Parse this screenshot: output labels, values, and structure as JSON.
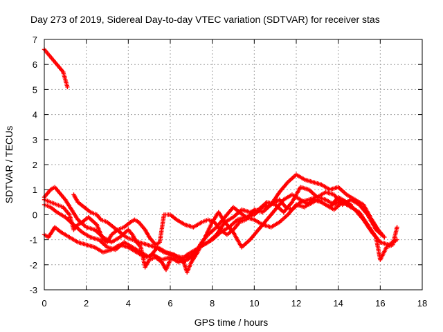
{
  "chart_data": {
    "type": "scatter",
    "title": "Day 273 of 2019, Sidereal Day-to-day VTEC variation (SDTVAR) for receiver stas",
    "xlabel": "GPS time / hours",
    "ylabel": "SDTVAR / TECUs",
    "xlim": [
      0,
      18
    ],
    "ylim": [
      -3,
      7
    ],
    "x_ticks": [
      0,
      2,
      4,
      6,
      8,
      10,
      12,
      14,
      16,
      18
    ],
    "y_ticks": [
      -3,
      -2,
      -1,
      0,
      1,
      2,
      3,
      4,
      5,
      6,
      7
    ],
    "grid": true,
    "marker": "+",
    "color": "#ff0000",
    "series": [
      {
        "name": "track-1",
        "points": [
          [
            0.0,
            6.6
          ],
          [
            0.3,
            6.3
          ],
          [
            0.6,
            6.0
          ],
          [
            0.9,
            5.7
          ],
          [
            1.1,
            5.1
          ]
        ]
      },
      {
        "name": "track-2",
        "points": [
          [
            0.0,
            0.7
          ],
          [
            0.3,
            1.0
          ],
          [
            0.5,
            1.1
          ],
          [
            0.8,
            0.8
          ],
          [
            1.0,
            0.6
          ],
          [
            1.3,
            0.2
          ],
          [
            1.6,
            -0.2
          ],
          [
            2.0,
            -0.5
          ],
          [
            2.4,
            -0.6
          ],
          [
            2.8,
            -0.9
          ],
          [
            3.2,
            -1.1
          ],
          [
            3.6,
            -0.9
          ],
          [
            4.0,
            -0.6
          ],
          [
            4.2,
            -0.8
          ],
          [
            4.4,
            -1.1
          ],
          [
            4.6,
            -1.3
          ],
          [
            4.8,
            -2.1
          ],
          [
            5.0,
            -1.8
          ],
          [
            5.3,
            -1.7
          ],
          [
            5.6,
            -1.9
          ],
          [
            5.8,
            -2.2
          ],
          [
            6.0,
            -1.8
          ],
          [
            6.3,
            -1.7
          ],
          [
            6.6,
            -1.8
          ],
          [
            6.8,
            -2.3
          ],
          [
            7.0,
            -1.9
          ],
          [
            7.3,
            -1.5
          ],
          [
            7.6,
            -1.0
          ],
          [
            8.0,
            -0.3
          ],
          [
            8.3,
            0.1
          ],
          [
            8.6,
            -0.3
          ],
          [
            9.0,
            -0.7
          ],
          [
            9.4,
            -1.3
          ],
          [
            9.8,
            -1.0
          ],
          [
            10.2,
            -0.6
          ],
          [
            10.6,
            -0.2
          ],
          [
            11.0,
            0.2
          ],
          [
            11.4,
            0.6
          ],
          [
            11.8,
            0.8
          ],
          [
            12.2,
            0.6
          ],
          [
            12.6,
            0.4
          ],
          [
            13.0,
            0.6
          ],
          [
            13.4,
            0.4
          ],
          [
            13.8,
            0.2
          ],
          [
            14.2,
            0.5
          ],
          [
            14.6,
            0.3
          ],
          [
            15.0,
            0.1
          ],
          [
            15.4,
            -0.4
          ],
          [
            15.8,
            -0.9
          ],
          [
            16.0,
            -1.8
          ],
          [
            16.3,
            -1.3
          ],
          [
            16.6,
            -1.2
          ],
          [
            16.8,
            -0.5
          ]
        ]
      },
      {
        "name": "track-3",
        "points": [
          [
            0.0,
            0.4
          ],
          [
            0.3,
            0.3
          ],
          [
            0.6,
            0.1
          ],
          [
            1.0,
            -0.1
          ],
          [
            1.4,
            -0.4
          ],
          [
            1.8,
            -0.7
          ],
          [
            2.2,
            -0.9
          ],
          [
            2.6,
            -1.0
          ],
          [
            3.0,
            -1.3
          ],
          [
            3.4,
            -1.4
          ],
          [
            3.8,
            -1.1
          ],
          [
            4.2,
            -1.3
          ],
          [
            4.6,
            -1.5
          ],
          [
            5.0,
            -1.7
          ],
          [
            5.4,
            -1.3
          ],
          [
            5.8,
            -1.5
          ],
          [
            6.2,
            -1.6
          ],
          [
            6.6,
            -1.9
          ],
          [
            7.0,
            -1.7
          ],
          [
            7.4,
            -1.3
          ],
          [
            7.8,
            -1.1
          ],
          [
            8.2,
            -0.8
          ],
          [
            8.6,
            -0.3
          ],
          [
            9.0,
            -0.1
          ],
          [
            9.4,
            0.2
          ],
          [
            9.8,
            0.1
          ],
          [
            10.2,
            0.2
          ],
          [
            10.6,
            0.5
          ],
          [
            11.0,
            0.4
          ],
          [
            11.4,
            0.1
          ],
          [
            11.8,
            0.5
          ],
          [
            12.2,
            1.1
          ],
          [
            12.6,
            1.0
          ],
          [
            13.0,
            0.7
          ],
          [
            13.4,
            0.9
          ],
          [
            13.8,
            0.8
          ],
          [
            14.2,
            0.4
          ],
          [
            14.6,
            0.6
          ],
          [
            15.0,
            0.4
          ],
          [
            15.4,
            0.0
          ],
          [
            15.8,
            -0.6
          ],
          [
            16.2,
            -0.9
          ]
        ]
      },
      {
        "name": "track-4",
        "points": [
          [
            0.0,
            -0.8
          ],
          [
            0.2,
            -0.9
          ],
          [
            0.5,
            -0.5
          ],
          [
            0.8,
            -0.7
          ],
          [
            1.2,
            -0.9
          ],
          [
            1.6,
            -1.1
          ],
          [
            2.0,
            -1.2
          ],
          [
            2.4,
            -1.3
          ],
          [
            2.8,
            -1.5
          ],
          [
            3.2,
            -1.4
          ],
          [
            3.6,
            -1.2
          ],
          [
            4.0,
            -1.3
          ],
          [
            4.4,
            -1.5
          ],
          [
            4.8,
            -1.7
          ],
          [
            5.2,
            -1.6
          ],
          [
            5.6,
            -1.8
          ],
          [
            6.0,
            -1.7
          ],
          [
            6.4,
            -1.9
          ],
          [
            6.8,
            -1.6
          ],
          [
            7.2,
            -1.4
          ],
          [
            7.6,
            -1.2
          ],
          [
            8.0,
            -1.0
          ],
          [
            8.4,
            -0.7
          ],
          [
            8.8,
            -0.5
          ],
          [
            9.2,
            -0.2
          ],
          [
            9.6,
            -0.1
          ],
          [
            10.0,
            -0.2
          ],
          [
            10.4,
            -0.4
          ],
          [
            10.8,
            -0.5
          ],
          [
            11.2,
            -0.3
          ],
          [
            11.6,
            0.0
          ],
          [
            12.0,
            0.4
          ],
          [
            12.4,
            0.3
          ],
          [
            12.8,
            0.6
          ],
          [
            13.2,
            0.5
          ],
          [
            13.6,
            0.3
          ],
          [
            14.0,
            0.7
          ],
          [
            14.4,
            0.5
          ],
          [
            14.8,
            0.2
          ],
          [
            15.2,
            -0.2
          ],
          [
            15.6,
            -0.7
          ],
          [
            16.0,
            -1.1
          ],
          [
            16.4,
            -1.2
          ],
          [
            16.8,
            -1.0
          ]
        ]
      },
      {
        "name": "track-5",
        "points": [
          [
            0.0,
            0.6
          ],
          [
            0.3,
            0.5
          ],
          [
            0.6,
            0.4
          ],
          [
            0.9,
            0.3
          ],
          [
            1.2,
            0.0
          ],
          [
            1.4,
            -0.6
          ],
          [
            1.6,
            -0.4
          ],
          [
            1.8,
            -0.3
          ],
          [
            2.1,
            -0.1
          ],
          [
            2.5,
            -0.4
          ],
          [
            2.8,
            -1.0
          ],
          [
            3.0,
            -1.1
          ],
          [
            3.2,
            -0.8
          ],
          [
            3.5,
            -0.6
          ],
          [
            3.8,
            -0.5
          ],
          [
            4.1,
            -0.3
          ],
          [
            4.3,
            -0.2
          ],
          [
            4.5,
            -0.3
          ],
          [
            4.8,
            -0.6
          ],
          [
            5.0,
            -0.9
          ],
          [
            5.3,
            -1.2
          ],
          [
            5.5,
            -1.1
          ],
          [
            5.7,
            0.0
          ],
          [
            6.0,
            0.0
          ],
          [
            6.3,
            -0.2
          ],
          [
            6.7,
            -0.4
          ],
          [
            7.1,
            -0.5
          ],
          [
            7.5,
            -0.3
          ],
          [
            7.8,
            -0.2
          ],
          [
            8.1,
            -0.3
          ],
          [
            8.4,
            -0.6
          ],
          [
            8.7,
            -0.8
          ],
          [
            9.0,
            -0.6
          ],
          [
            9.3,
            -0.3
          ],
          [
            9.6,
            -0.2
          ],
          [
            10.0,
            0.2
          ],
          [
            10.4,
            0.1
          ],
          [
            10.8,
            0.4
          ],
          [
            11.2,
            0.9
          ],
          [
            11.6,
            1.3
          ],
          [
            12.0,
            1.6
          ],
          [
            12.4,
            1.4
          ],
          [
            12.8,
            1.3
          ],
          [
            13.2,
            1.2
          ],
          [
            13.6,
            1.0
          ],
          [
            14.0,
            1.1
          ],
          [
            14.4,
            0.8
          ],
          [
            14.8,
            0.6
          ],
          [
            15.2,
            0.4
          ],
          [
            15.6,
            -0.2
          ],
          [
            15.9,
            -0.6
          ],
          [
            16.1,
            -0.8
          ]
        ]
      },
      {
        "name": "track-6",
        "points": [
          [
            1.4,
            0.8
          ],
          [
            1.6,
            0.5
          ],
          [
            1.9,
            0.3
          ],
          [
            2.2,
            0.1
          ],
          [
            2.5,
            0.0
          ],
          [
            2.7,
            -0.2
          ],
          [
            3.0,
            -0.3
          ],
          [
            3.3,
            -0.5
          ],
          [
            3.6,
            -0.7
          ],
          [
            3.9,
            -0.9
          ],
          [
            4.2,
            -1.0
          ],
          [
            4.5,
            -1.1
          ],
          [
            4.9,
            -1.2
          ],
          [
            5.3,
            -1.3
          ],
          [
            5.7,
            -1.5
          ],
          [
            6.1,
            -1.6
          ],
          [
            6.5,
            -1.7
          ],
          [
            6.9,
            -1.7
          ],
          [
            7.2,
            -1.5
          ],
          [
            7.5,
            -1.1
          ],
          [
            7.8,
            -0.8
          ],
          [
            8.2,
            -0.5
          ],
          [
            8.6,
            -0.1
          ],
          [
            9.0,
            0.3
          ],
          [
            9.3,
            0.1
          ],
          [
            9.6,
            -0.1
          ],
          [
            10.0,
            0.0
          ],
          [
            10.4,
            0.3
          ],
          [
            10.8,
            0.4
          ],
          [
            11.2,
            0.6
          ],
          [
            11.5,
            0.3
          ],
          [
            11.8,
            0.2
          ],
          [
            12.2,
            0.5
          ],
          [
            12.6,
            0.6
          ],
          [
            13.0,
            0.7
          ],
          [
            13.4,
            0.6
          ],
          [
            13.8,
            0.4
          ],
          [
            14.2,
            0.6
          ],
          [
            14.6,
            0.4
          ]
        ]
      }
    ]
  }
}
